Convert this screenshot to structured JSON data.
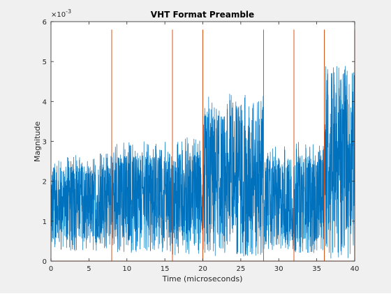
{
  "chart_data": {
    "type": "line",
    "title": "VHT Format Preamble",
    "xlabel": "Time (microseconds)",
    "ylabel": "Magnitude",
    "y_exponent_label": "×10",
    "y_exponent_power": "-3",
    "xlim": [
      0,
      40
    ],
    "ylim": [
      0,
      6
    ],
    "xticks": [
      "0",
      "5",
      "10",
      "15",
      "20",
      "25",
      "30",
      "35",
      "40"
    ],
    "yticks": [
      "0",
      "1",
      "2",
      "3",
      "4",
      "5",
      "6"
    ],
    "grid": false,
    "colors": {
      "signal": "#0072bd",
      "markers": "#d95319",
      "axes_bg": "#ffffff",
      "figure_bg": "#f0f0f0"
    },
    "series": [
      {
        "description": "noise-like magnitude envelope (scaled by 1e-3)",
        "segments": [
          {
            "x_start": 0,
            "x_end": 8,
            "low": 0.25,
            "high": 2.7
          },
          {
            "x_start": 8,
            "x_end": 16,
            "low": 0.2,
            "high": 3.0
          },
          {
            "x_start": 16,
            "x_end": 20,
            "low": 0.15,
            "high": 3.1
          },
          {
            "x_start": 20,
            "x_end": 28,
            "low": 0.1,
            "high": 4.2
          },
          {
            "x_start": 28,
            "x_end": 32,
            "low": 0.25,
            "high": 2.9
          },
          {
            "x_start": 32,
            "x_end": 36,
            "low": 0.2,
            "high": 3.0
          },
          {
            "x_start": 36,
            "x_end": 40,
            "low": 0.05,
            "high": 4.9
          }
        ]
      }
    ],
    "field_boundaries_x": [
      8,
      16,
      20,
      28,
      32,
      36,
      40
    ],
    "field_boundary_height": 5.8
  }
}
